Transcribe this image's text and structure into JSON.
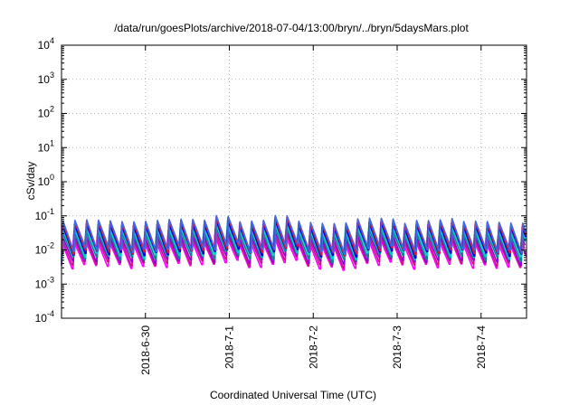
{
  "chart_data": {
    "type": "line",
    "title": "/data/run/goesPlots/archive/2018-07-04/13:00/bryn/../bryn/5daysMars.plot",
    "xlabel": "Coordinated Universal Time (UTC)",
    "ylabel": "cSv/day",
    "yscale": "log",
    "ylim": [
      0.0001,
      10000
    ],
    "xlim": [
      "2018-06-29T00:00",
      "2018-07-04T13:00"
    ],
    "grid": true,
    "legend": "none",
    "y_ticks": [
      {
        "value": 0.0001,
        "base": "10",
        "exp": "-4"
      },
      {
        "value": 0.001,
        "base": "10",
        "exp": "-3"
      },
      {
        "value": 0.01,
        "base": "10",
        "exp": "-2"
      },
      {
        "value": 0.1,
        "base": "10",
        "exp": "-1"
      },
      {
        "value": 1,
        "base": "10",
        "exp": "0"
      },
      {
        "value": 10,
        "base": "10",
        "exp": "1"
      },
      {
        "value": 100,
        "base": "10",
        "exp": "2"
      },
      {
        "value": 1000,
        "base": "10",
        "exp": "3"
      },
      {
        "value": 10000,
        "base": "10",
        "exp": "4"
      }
    ],
    "x_ticks": [
      {
        "value": "2018-06-30T00:00",
        "label": "2018-6-30"
      },
      {
        "value": "2018-07-01T00:00",
        "label": "2018-7-1"
      },
      {
        "value": "2018-07-02T00:00",
        "label": "2018-7-2"
      },
      {
        "value": "2018-07-03T00:00",
        "label": "2018-7-3"
      },
      {
        "value": "2018-07-04T00:00",
        "label": "2018-7-4"
      }
    ],
    "cycle_hours": 3.37,
    "series": [
      {
        "color": "#ff00ff",
        "low": 0.0032,
        "high": 0.018
      },
      {
        "color": "#c71585",
        "low": 0.0038,
        "high": 0.022
      },
      {
        "color": "#9400d3",
        "low": 0.0045,
        "high": 0.027
      },
      {
        "color": "#008b8b",
        "low": 0.0055,
        "high": 0.034
      },
      {
        "color": "#00ced1",
        "low": 0.0065,
        "high": 0.042
      },
      {
        "color": "#0000cd",
        "low": 0.0075,
        "high": 0.052
      },
      {
        "color": "#dc143c",
        "low": 0.0085,
        "high": 0.062
      },
      {
        "color": "#4169e1",
        "low": 0.0095,
        "high": 0.068
      }
    ]
  }
}
